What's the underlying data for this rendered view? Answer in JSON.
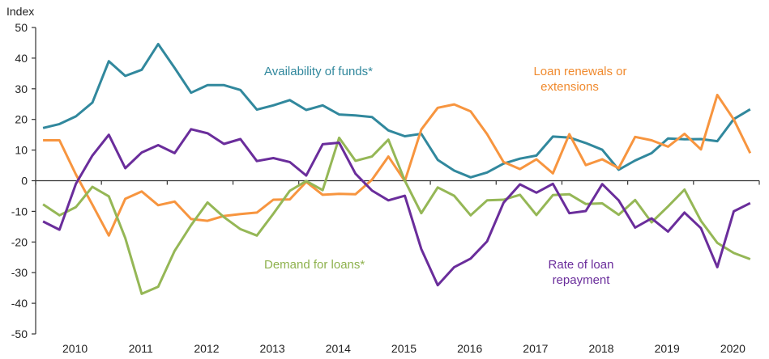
{
  "chart_data": {
    "type": "line",
    "ylabel": "Index",
    "ylim": [
      -50,
      50
    ],
    "yticks": [
      50,
      40,
      30,
      20,
      10,
      0,
      -10,
      -20,
      -30,
      -40,
      -50
    ],
    "xtick_labels": [
      "2010",
      "2011",
      "2012",
      "2013",
      "2014",
      "2015",
      "2016",
      "2017",
      "2018",
      "2019",
      "2020"
    ],
    "grid": false,
    "x": [
      "2010Q1",
      "2010Q2",
      "2010Q3",
      "2010Q4",
      "2011Q1",
      "2011Q2",
      "2011Q3",
      "2011Q4",
      "2012Q1",
      "2012Q2",
      "2012Q3",
      "2012Q4",
      "2013Q1",
      "2013Q2",
      "2013Q3",
      "2013Q4",
      "2014Q1",
      "2014Q2",
      "2014Q3",
      "2014Q4",
      "2015Q1",
      "2015Q2",
      "2015Q3",
      "2015Q4",
      "2016Q1",
      "2016Q2",
      "2016Q3",
      "2016Q4",
      "2017Q1",
      "2017Q2",
      "2017Q3",
      "2017Q4",
      "2018Q1",
      "2018Q2",
      "2018Q3",
      "2018Q4",
      "2019Q1",
      "2019Q2",
      "2019Q3",
      "2019Q4",
      "2020Q1",
      "2020Q2",
      "2020Q3",
      "2020Q4"
    ],
    "series": [
      {
        "name": "Availability of funds*",
        "color": "#31889d",
        "values": [
          17.2,
          18.5,
          21,
          25.5,
          39,
          34.2,
          36.2,
          44.6,
          36.8,
          28.7,
          31.2,
          31.2,
          29.6,
          23.2,
          24.6,
          26.3,
          23.1,
          24.6,
          21.6,
          21.3,
          20.8,
          16.4,
          14.5,
          15.3,
          6.8,
          3.3,
          1.1,
          2.7,
          5.6,
          7.2,
          8.2,
          14.4,
          14.1,
          12.3,
          10.1,
          3.6,
          6.6,
          9.0,
          13.8,
          13.5,
          13.6,
          12.9,
          20.1,
          23.3
        ]
      },
      {
        "name": "Loan renewals or extensions",
        "color": "#f7953f",
        "values": [
          13.2,
          13.2,
          2,
          -7.8,
          -17.9,
          -5.9,
          -3.5,
          -8,
          -6.8,
          -12.5,
          -13.1,
          -11.5,
          -10.9,
          -10.4,
          -6.2,
          -6.1,
          -0.4,
          -4.6,
          -4.3,
          -4.4,
          0.3,
          7.9,
          -0.1,
          16.7,
          23.8,
          24.9,
          22.6,
          15.2,
          6.1,
          3.8,
          7,
          2.4,
          15.2,
          5.1,
          7,
          4.1,
          14.3,
          13.2,
          11.1,
          15.3,
          10.2,
          28,
          20,
          9
        ]
      },
      {
        "name": "Demand for loans*",
        "color": "#95b756",
        "values": [
          -7.7,
          -11.3,
          -8.6,
          -2.0,
          -5.1,
          -18.7,
          -36.9,
          -34.6,
          -22.9,
          -14.5,
          -7.1,
          -11.9,
          -15.8,
          -17.9,
          -10.8,
          -3.3,
          -0.1,
          -3.1,
          14.0,
          6.5,
          7.9,
          13.4,
          0,
          -10.6,
          -2.2,
          -4.9,
          -11.3,
          -6.4,
          -6.2,
          -4.6,
          -11.2,
          -4.7,
          -4.4,
          -7.6,
          -7.4,
          -11.1,
          -6.3,
          -13.6,
          -8.4,
          -2.9,
          -13.1,
          -20.3,
          -23.6,
          -25.6
        ]
      },
      {
        "name": "Rate of loan repayment",
        "color": "#6a2d9b",
        "values": [
          -13.3,
          -16,
          -1,
          8.2,
          15,
          4.1,
          9.2,
          11.6,
          9,
          16.8,
          15.5,
          12,
          13.6,
          6.4,
          7.4,
          6.1,
          1.7,
          11.9,
          12.4,
          2.3,
          -3.2,
          -6.4,
          -4.9,
          -22.3,
          -34.1,
          -28.2,
          -25.4,
          -19.8,
          -7.2,
          -1.2,
          -3.9,
          -1,
          -10.6,
          -9.9,
          -1.1,
          -6.4,
          -15.3,
          -12.3,
          -16.6,
          -10.4,
          -15.5,
          -28.2,
          -10,
          -7.3
        ]
      }
    ],
    "annotations": {
      "availability": "Availability of funds*",
      "renewals_line1": "Loan renewals  or",
      "renewals_line2": "extensions",
      "demand": "Demand for loans*",
      "repayment_line1": "Rate of loan",
      "repayment_line2": "repayment"
    }
  }
}
